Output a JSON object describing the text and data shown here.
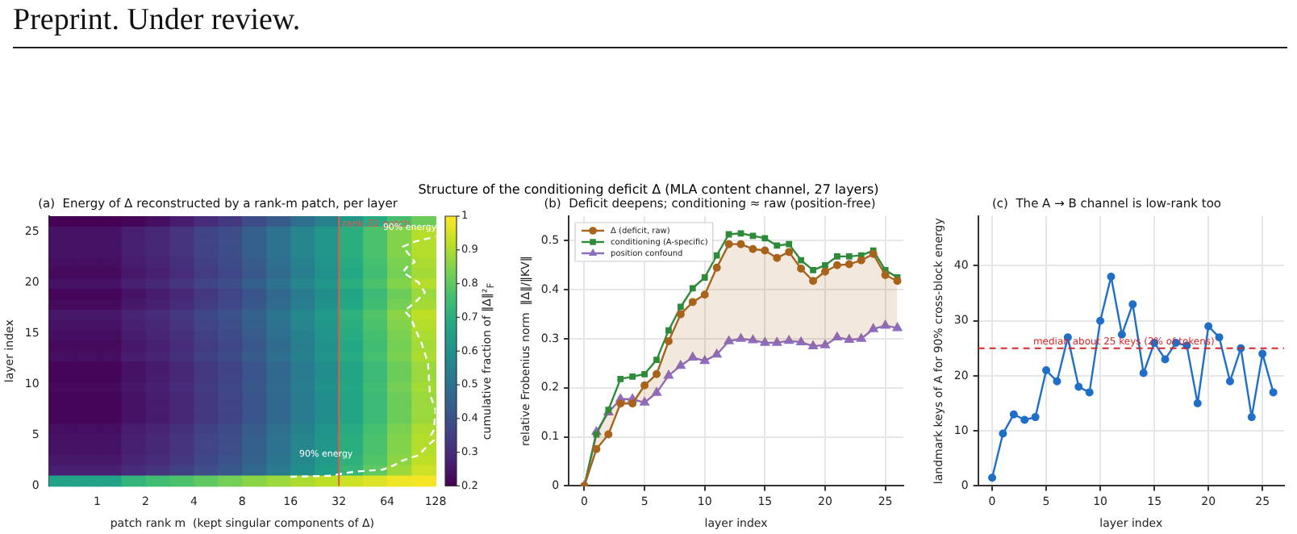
{
  "chart_data": [
    {
      "type": "other",
      "title": "Structure of the conditioning deficit Δ  (MLA content channel, 27 layers)",
      "annotations": [
        "Preprint. Under review."
      ]
    },
    {
      "type": "heatmap",
      "title": "(a)  Energy of Δ reconstructed by a rank-m patch, per layer",
      "xlabel": "patch rank m  (kept singular components of Δ)",
      "ylabel": "layer index",
      "clabel": "cumulative fraction of ‖Δ‖²$_{F}$",
      "x": [
        0.59,
        0.84,
        1.19,
        1.68,
        2.38,
        3.36,
        4.76,
        6.73,
        9.51,
        13.5,
        19,
        26.9,
        38.1,
        53.8,
        76.1,
        108
      ],
      "log": "x",
      "xlim": [
        0.5,
        128
      ],
      "xticks": [
        1,
        2,
        4,
        8,
        16,
        32,
        64,
        128
      ],
      "ylim": [
        0,
        26.5
      ],
      "yticks": [
        0,
        5,
        10,
        15,
        20,
        25
      ],
      "cells": [
        [
          0.2,
          0.2,
          0.2,
          0.21,
          0.23,
          0.26,
          0.3,
          0.33,
          0.38,
          0.43,
          0.49,
          0.55,
          0.62,
          0.69,
          0.76,
          0.82
        ],
        [
          0.24,
          0.24,
          0.24,
          0.27,
          0.29,
          0.32,
          0.36,
          0.39,
          0.44,
          0.5,
          0.56,
          0.62,
          0.7,
          0.77,
          0.85,
          0.91
        ],
        [
          0.24,
          0.24,
          0.24,
          0.27,
          0.29,
          0.32,
          0.36,
          0.39,
          0.44,
          0.5,
          0.56,
          0.62,
          0.7,
          0.77,
          0.85,
          0.91
        ],
        [
          0.24,
          0.24,
          0.24,
          0.27,
          0.29,
          0.32,
          0.36,
          0.39,
          0.44,
          0.5,
          0.56,
          0.62,
          0.7,
          0.77,
          0.85,
          0.91
        ],
        [
          0.23,
          0.23,
          0.23,
          0.26,
          0.28,
          0.31,
          0.35,
          0.38,
          0.43,
          0.49,
          0.55,
          0.61,
          0.69,
          0.76,
          0.84,
          0.9
        ],
        [
          0.22,
          0.22,
          0.22,
          0.25,
          0.27,
          0.3,
          0.34,
          0.37,
          0.42,
          0.48,
          0.54,
          0.6,
          0.68,
          0.75,
          0.83,
          0.89
        ],
        [
          0.24,
          0.24,
          0.24,
          0.27,
          0.29,
          0.32,
          0.36,
          0.39,
          0.44,
          0.5,
          0.56,
          0.62,
          0.7,
          0.77,
          0.85,
          0.91
        ],
        [
          0.21,
          0.21,
          0.21,
          0.24,
          0.26,
          0.29,
          0.33,
          0.36,
          0.41,
          0.47,
          0.53,
          0.59,
          0.67,
          0.74,
          0.82,
          0.88
        ],
        [
          0.22,
          0.22,
          0.22,
          0.25,
          0.27,
          0.3,
          0.34,
          0.37,
          0.42,
          0.48,
          0.54,
          0.6,
          0.68,
          0.75,
          0.83,
          0.89
        ],
        [
          0.25,
          0.25,
          0.25,
          0.28,
          0.3,
          0.33,
          0.37,
          0.4,
          0.45,
          0.51,
          0.57,
          0.63,
          0.71,
          0.78,
          0.86,
          0.92
        ],
        [
          0.24,
          0.24,
          0.24,
          0.27,
          0.29,
          0.32,
          0.36,
          0.39,
          0.44,
          0.5,
          0.56,
          0.62,
          0.7,
          0.77,
          0.85,
          0.91
        ],
        [
          0.23,
          0.23,
          0.23,
          0.26,
          0.28,
          0.31,
          0.35,
          0.38,
          0.43,
          0.49,
          0.55,
          0.61,
          0.69,
          0.76,
          0.84,
          0.9
        ],
        [
          0.22,
          0.22,
          0.22,
          0.25,
          0.27,
          0.3,
          0.34,
          0.37,
          0.42,
          0.48,
          0.54,
          0.6,
          0.68,
          0.75,
          0.83,
          0.89
        ],
        [
          0.23,
          0.23,
          0.23,
          0.26,
          0.28,
          0.31,
          0.35,
          0.38,
          0.43,
          0.49,
          0.55,
          0.61,
          0.69,
          0.76,
          0.84,
          0.9
        ],
        [
          0.21,
          0.21,
          0.21,
          0.24,
          0.26,
          0.29,
          0.33,
          0.36,
          0.41,
          0.47,
          0.53,
          0.59,
          0.67,
          0.74,
          0.82,
          0.88
        ],
        [
          0.21,
          0.21,
          0.21,
          0.24,
          0.26,
          0.29,
          0.33,
          0.36,
          0.41,
          0.47,
          0.53,
          0.59,
          0.67,
          0.74,
          0.82,
          0.88
        ],
        [
          0.22,
          0.22,
          0.22,
          0.25,
          0.27,
          0.3,
          0.34,
          0.37,
          0.42,
          0.48,
          0.54,
          0.6,
          0.68,
          0.75,
          0.83,
          0.89
        ],
        [
          0.21,
          0.21,
          0.21,
          0.24,
          0.26,
          0.29,
          0.33,
          0.36,
          0.41,
          0.47,
          0.53,
          0.59,
          0.67,
          0.74,
          0.82,
          0.88
        ],
        [
          0.21,
          0.21,
          0.21,
          0.24,
          0.26,
          0.29,
          0.33,
          0.36,
          0.41,
          0.47,
          0.53,
          0.59,
          0.67,
          0.74,
          0.82,
          0.88
        ],
        [
          0.21,
          0.21,
          0.21,
          0.24,
          0.26,
          0.29,
          0.33,
          0.36,
          0.41,
          0.47,
          0.53,
          0.59,
          0.67,
          0.74,
          0.82,
          0.88
        ],
        [
          0.23,
          0.23,
          0.23,
          0.26,
          0.28,
          0.31,
          0.35,
          0.38,
          0.43,
          0.49,
          0.55,
          0.61,
          0.69,
          0.76,
          0.84,
          0.9
        ],
        [
          0.24,
          0.24,
          0.24,
          0.27,
          0.29,
          0.32,
          0.36,
          0.39,
          0.44,
          0.5,
          0.56,
          0.62,
          0.7,
          0.77,
          0.85,
          0.91
        ],
        [
          0.24,
          0.24,
          0.24,
          0.27,
          0.29,
          0.32,
          0.36,
          0.39,
          0.44,
          0.5,
          0.56,
          0.62,
          0.7,
          0.77,
          0.85,
          0.91
        ],
        [
          0.25,
          0.25,
          0.25,
          0.28,
          0.3,
          0.33,
          0.37,
          0.4,
          0.45,
          0.51,
          0.57,
          0.63,
          0.71,
          0.78,
          0.86,
          0.92
        ],
        [
          0.27,
          0.27,
          0.27,
          0.3,
          0.32,
          0.35,
          0.39,
          0.42,
          0.47,
          0.53,
          0.59,
          0.65,
          0.73,
          0.8,
          0.88,
          0.94
        ],
        [
          0.66,
          0.66,
          0.66,
          0.72,
          0.75,
          0.77,
          0.8,
          0.83,
          0.86,
          0.88,
          0.9,
          0.92,
          0.94,
          0.96,
          0.98,
          0.99
        ]
      ],
      "clim": [
        0.2,
        1.0
      ],
      "cticks": [
        0.2,
        0.3,
        0.4,
        0.5,
        0.6,
        0.7,
        0.8,
        0.9,
        1.0
      ],
      "series": [
        {
          "type": "line",
          "color": "#ffffff",
          "line_style": "dashed",
          "marker": "none",
          "x": [
            16,
            28,
            40,
            60,
            70,
            80,
            100,
            115,
            125,
            120,
            125,
            128,
            118,
            115,
            105,
            95,
            90,
            82,
            95,
            110,
            100,
            80,
            85,
            95,
            85,
            80,
            95,
            128
          ],
          "values": [
            0.9,
            1.0,
            1.4,
            1.6,
            2,
            2.5,
            3,
            4,
            4.5,
            5,
            5.5,
            7.5,
            9,
            12,
            14,
            15.5,
            16.5,
            17.2,
            18,
            19,
            20,
            21,
            21.5,
            22,
            23,
            23.5,
            24,
            24.5
          ]
        }
      ],
      "ref_lines": [
        {
          "axis": "x",
          "value": 32,
          "label": "rank-32 patch",
          "color": "#e8594a"
        }
      ],
      "annotations": [
        "90% energy",
        "90% energy"
      ]
    },
    {
      "type": "line",
      "title": "(b)  Deficit deepens; conditioning ≈ raw (position-free)",
      "xlabel": "layer index",
      "ylabel": "relative Frobenius norm  ‖Δ‖/‖KV‖",
      "x": [
        0,
        1,
        2,
        3,
        4,
        5,
        6,
        7,
        8,
        9,
        10,
        11,
        12,
        13,
        14,
        15,
        16,
        17,
        18,
        19,
        20,
        21,
        22,
        23,
        24,
        25,
        26
      ],
      "xlim": [
        -1.3,
        26.5
      ],
      "xticks": [
        0,
        5,
        10,
        15,
        20,
        25
      ],
      "ylim": [
        0,
        0.55
      ],
      "yticks": [
        0,
        0.1,
        0.2,
        0.3,
        0.4,
        0.5
      ],
      "grid": true,
      "legend": "top left",
      "series": [
        {
          "name": "Δ (deficit, raw)",
          "color": "#a8641c",
          "marker": "circle",
          "values": [
            0,
            0.075,
            0.105,
            0.168,
            0.168,
            0.205,
            0.228,
            0.295,
            0.35,
            0.375,
            0.39,
            0.445,
            0.493,
            0.493,
            0.483,
            0.48,
            0.465,
            0.477,
            0.443,
            0.418,
            0.437,
            0.45,
            0.452,
            0.46,
            0.473,
            0.43,
            0.418
          ],
          "lower": [
            0,
            0.11,
            0.15,
            0.177,
            0.177,
            0.17,
            0.19,
            0.225,
            0.245,
            0.262,
            0.255,
            0.268,
            0.295,
            0.3,
            0.297,
            0.292,
            0.292,
            0.296,
            0.293,
            0.285,
            0.287,
            0.303,
            0.298,
            0.3,
            0.32,
            0.327,
            0.322
          ],
          "upper": [
            0,
            0.075,
            0.105,
            0.168,
            0.168,
            0.205,
            0.228,
            0.295,
            0.35,
            0.375,
            0.39,
            0.445,
            0.493,
            0.493,
            0.483,
            0.48,
            0.465,
            0.477,
            0.443,
            0.418,
            0.437,
            0.45,
            0.452,
            0.46,
            0.473,
            0.43,
            0.418
          ]
        },
        {
          "name": "conditioning (A-specific)",
          "color": "#2e8b3a",
          "marker": "square",
          "values": [
            0,
            0.105,
            0.155,
            0.218,
            0.223,
            0.228,
            0.257,
            0.317,
            0.365,
            0.403,
            0.425,
            0.47,
            0.513,
            0.515,
            0.51,
            0.505,
            0.49,
            0.493,
            0.46,
            0.44,
            0.45,
            0.468,
            0.468,
            0.47,
            0.48,
            0.44,
            0.425
          ]
        },
        {
          "name": "position confound",
          "color": "#8e6cc0",
          "marker": "triangle",
          "values": [
            0,
            0.11,
            0.15,
            0.177,
            0.177,
            0.17,
            0.19,
            0.225,
            0.245,
            0.262,
            0.255,
            0.268,
            0.295,
            0.3,
            0.297,
            0.292,
            0.292,
            0.296,
            0.293,
            0.285,
            0.287,
            0.303,
            0.298,
            0.3,
            0.32,
            0.327,
            0.322
          ]
        }
      ]
    },
    {
      "type": "line",
      "title": "(c)  The A → B channel is low-rank too",
      "xlabel": "layer index",
      "ylabel": "landmark keys of A for 90% cross-block energy",
      "x": [
        0,
        1,
        2,
        3,
        4,
        5,
        6,
        7,
        8,
        9,
        10,
        11,
        12,
        13,
        14,
        15,
        16,
        17,
        18,
        19,
        20,
        21,
        22,
        23,
        24,
        25,
        26
      ],
      "xlim": [
        -1.3,
        27
      ],
      "xticks": [
        0,
        5,
        10,
        15,
        20,
        25
      ],
      "ylim": [
        0,
        49
      ],
      "yticks": [
        0,
        10,
        20,
        30,
        40
      ],
      "grid": true,
      "marker": "circle",
      "series": [
        {
          "color": "#1f6fc8",
          "values": [
            1.5,
            9.5,
            13,
            12,
            12.5,
            21,
            19,
            27,
            18,
            17,
            30,
            38,
            27.5,
            33,
            20.5,
            26,
            23,
            26,
            25.5,
            15,
            29,
            27,
            19,
            25,
            12.5,
            24,
            17
          ]
        }
      ],
      "ref_lines": [
        {
          "axis": "y",
          "value": 25,
          "label": "median about 25 keys (2% of tokens)",
          "color": "#d62728",
          "line_style": "dashed"
        }
      ]
    }
  ]
}
